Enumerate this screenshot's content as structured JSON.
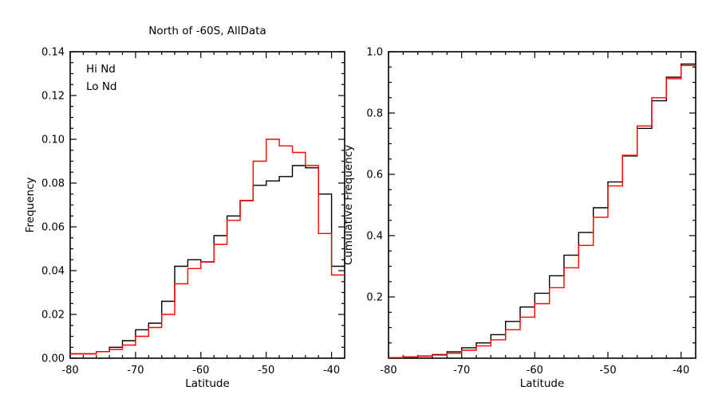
{
  "page": {
    "background": "#ffffff",
    "axis_color": "#000000"
  },
  "chart_data": [
    {
      "type": "step-histogram",
      "title": "North of -60S, AllData",
      "xlabel": "Latitude",
      "ylabel": "Frequency",
      "xlim": [
        -80,
        -38
      ],
      "ylim": [
        0,
        0.14
      ],
      "grid": false,
      "xticks": {
        "major": [
          -80,
          -70,
          -60,
          -50,
          -40
        ],
        "labels": [
          "-80",
          "-70",
          "-60",
          "-50",
          "-40"
        ],
        "minor_step": 2
      },
      "yticks": {
        "major": [
          0,
          0.02,
          0.04,
          0.06,
          0.08,
          0.1,
          0.12,
          0.14
        ],
        "labels": [
          "0.00",
          "0.02",
          "0.04",
          "0.06",
          "0.08",
          "0.10",
          "0.12",
          "0.14"
        ],
        "minor_step": 0.005
      },
      "bin_edges": [
        -80,
        -78,
        -76,
        -74,
        -72,
        -70,
        -68,
        -66,
        -64,
        -62,
        -60,
        -58,
        -56,
        -54,
        -52,
        -50,
        -48,
        -46,
        -44,
        -42,
        -40,
        -38
      ],
      "series": [
        {
          "name": "Hi Nd",
          "color": "#000000",
          "values": [
            0.002,
            0.002,
            0.003,
            0.005,
            0.008,
            0.013,
            0.016,
            0.026,
            0.042,
            0.045,
            0.044,
            0.056,
            0.065,
            0.072,
            0.079,
            0.081,
            0.083,
            0.088,
            0.087,
            0.075,
            0.042
          ]
        },
        {
          "name": "Lo Nd",
          "color": "#ff0000",
          "values": [
            0.002,
            0.002,
            0.003,
            0.004,
            0.006,
            0.01,
            0.014,
            0.02,
            0.034,
            0.041,
            0.044,
            0.052,
            0.063,
            0.072,
            0.09,
            0.1,
            0.097,
            0.094,
            0.088,
            0.057,
            0.038
          ]
        }
      ],
      "legend": {
        "position": "upper-left",
        "entries": [
          {
            "label": "Hi Nd",
            "color": "#000000"
          },
          {
            "label": "Lo Nd",
            "color": "#ff0000"
          }
        ]
      }
    },
    {
      "type": "step-line",
      "title": "",
      "xlabel": "Latitude",
      "ylabel": "Cumulative Frequency",
      "xlim": [
        -80,
        -38
      ],
      "ylim": [
        0,
        1.0
      ],
      "grid": false,
      "xticks": {
        "major": [
          -80,
          -70,
          -60,
          -50,
          -40
        ],
        "labels": [
          "-80",
          "-70",
          "-60",
          "-50",
          "-40"
        ],
        "minor_step": 2
      },
      "yticks": {
        "major": [
          0.2,
          0.4,
          0.6,
          0.8,
          1.0
        ],
        "labels": [
          "0.2",
          "0.4",
          "0.6",
          "0.8",
          "1.0"
        ],
        "minor_step": 0.05
      },
      "bin_edges": [
        -80,
        -78,
        -76,
        -74,
        -72,
        -70,
        -68,
        -66,
        -64,
        -62,
        -60,
        -58,
        -56,
        -54,
        -52,
        -50,
        -48,
        -46,
        -44,
        -42,
        -40,
        -38
      ],
      "series": [
        {
          "name": "Hi Nd",
          "color": "#000000",
          "values": [
            0.002,
            0.004,
            0.007,
            0.012,
            0.021,
            0.034,
            0.05,
            0.077,
            0.12,
            0.167,
            0.212,
            0.269,
            0.336,
            0.41,
            0.491,
            0.575,
            0.66,
            0.75,
            0.84,
            0.917,
            0.96
          ]
        },
        {
          "name": "Lo Nd",
          "color": "#ff0000",
          "values": [
            0.002,
            0.004,
            0.006,
            0.01,
            0.016,
            0.026,
            0.04,
            0.06,
            0.093,
            0.134,
            0.178,
            0.23,
            0.295,
            0.368,
            0.46,
            0.562,
            0.662,
            0.758,
            0.85,
            0.912,
            0.955
          ]
        }
      ],
      "legend": null
    }
  ]
}
